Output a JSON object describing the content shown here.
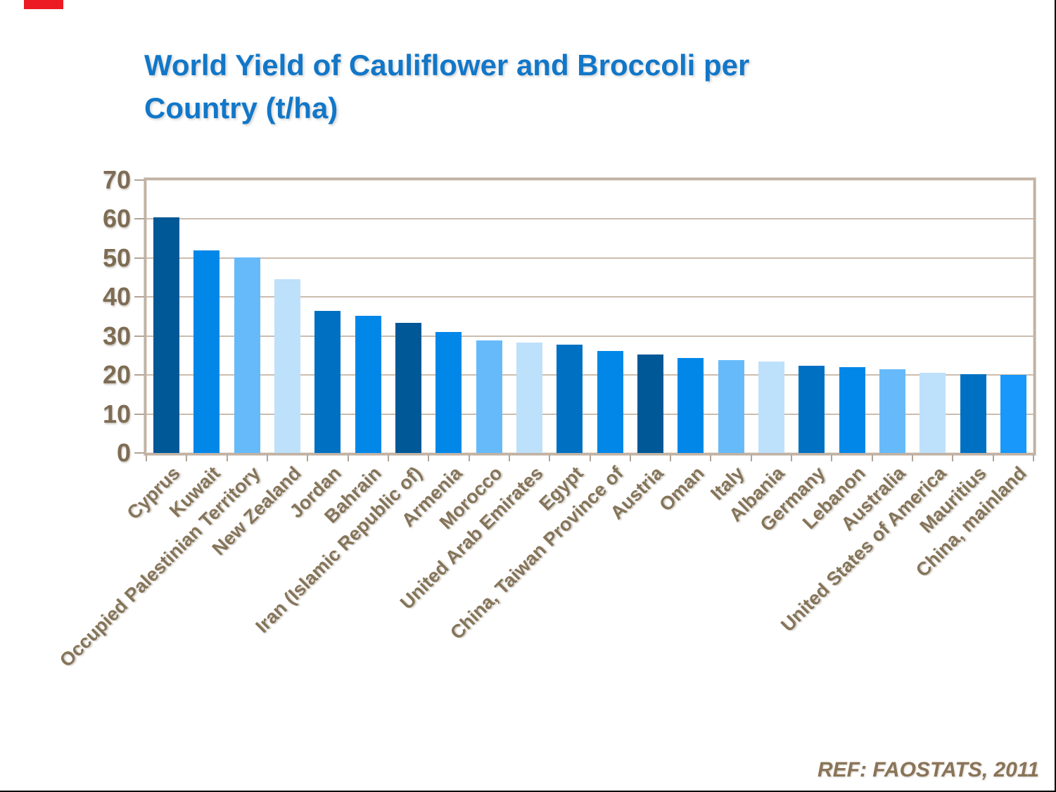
{
  "slide": {
    "background": "#FFFFFF",
    "edge_border_color": "#000000"
  },
  "accent_bar": {
    "color": "#EC1B23"
  },
  "title": {
    "line1": "World Yield of Cauliflower and Broccoli per",
    "line2": "Country (t/ha)",
    "color": "#1277C8"
  },
  "footer": {
    "ref_text": "REF: FAOSTATS, 2011",
    "color": "#8A7458"
  },
  "chart_data": {
    "type": "bar",
    "title": "World Yield of Cauliflower and Broccoli per Country (t/ha)",
    "xlabel": "",
    "ylabel": "",
    "ylim": [
      0,
      70
    ],
    "yticks": [
      0,
      10,
      20,
      30,
      40,
      50,
      60,
      70
    ],
    "grid": true,
    "legend": false,
    "categories": [
      "Cyprus",
      "Kuwait",
      "Occupied Palestinian Territory",
      "New Zealand",
      "Jordan",
      "Bahrain",
      "Iran (Islamic Republic of)",
      "Armenia",
      "Morocco",
      "United Arab Emirates",
      "Egypt",
      "China, Taiwan Province of",
      "Austria",
      "Oman",
      "Italy",
      "Albania",
      "Germany",
      "Lebanon",
      "Australia",
      "United States of America",
      "Mauritius",
      "China, mainland"
    ],
    "values": [
      60.4,
      52.0,
      50.1,
      44.6,
      36.5,
      35.2,
      33.3,
      31.1,
      28.8,
      28.3,
      27.7,
      26.1,
      25.2,
      24.3,
      23.9,
      23.4,
      22.3,
      22.1,
      21.4,
      20.5,
      20.2,
      20.1
    ],
    "bar_colors": [
      "#015896",
      "#0087E8",
      "#66BAFA",
      "#BDE0FB",
      "#0071C2",
      "#0087E8",
      "#015896",
      "#0087E8",
      "#66BAFA",
      "#BDE0FB",
      "#0071C2",
      "#0087E8",
      "#015896",
      "#0087E8",
      "#66BAFA",
      "#BDE0FB",
      "#0071C2",
      "#0087E8",
      "#66BAFA",
      "#BDE0FB",
      "#0071C2",
      "#1798FA"
    ],
    "axis_label_color": "#7E6C54",
    "category_label_color": "#857459",
    "gridline_color": "#CBBDAE",
    "frame_color": "#C0B2A4",
    "tick_color": "#B2A496",
    "source": "REF: FAOSTATS, 2011"
  }
}
